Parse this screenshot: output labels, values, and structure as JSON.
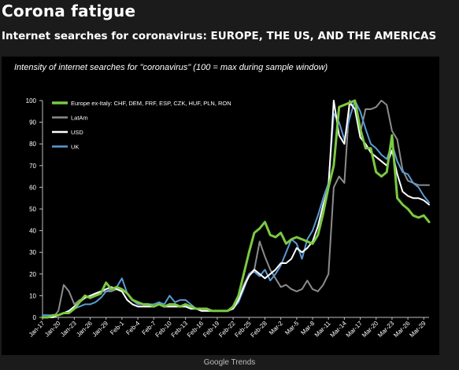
{
  "header": {
    "title": "Corona fatigue",
    "subtitle": "Internet searches for coronavirus: EUROPE, THE US, AND THE AMERICAS"
  },
  "source": "Google Trends",
  "chart_data": {
    "type": "line",
    "title": "Intensity of internet searches for \"coronavirus\" (100 = max during sample window)",
    "xlabel": "",
    "ylabel": "",
    "ylim": [
      0,
      100
    ],
    "yticks": [
      0,
      10,
      20,
      30,
      40,
      50,
      60,
      70,
      80,
      90,
      100
    ],
    "grid": false,
    "legend_position": "top-left",
    "x_tick_labels": [
      "Jan-17",
      "Jan-20",
      "Jan-23",
      "Jan-26",
      "Jan-29",
      "Feb-1",
      "Feb-4",
      "Feb-7",
      "Feb-10",
      "Feb-13",
      "Feb-16",
      "Feb-19",
      "Feb-22",
      "Feb-25",
      "Feb-28",
      "Mar-2",
      "Mar-5",
      "Mar-8",
      "Mar-11",
      "Mar-14",
      "Mar-17",
      "Mar-20",
      "Mar-23",
      "Mar-26",
      "Mar-29"
    ],
    "x_start_label": "Jan-17",
    "x_day_count": 73,
    "series": [
      {
        "name": "Europe ex-Italy: CHF, DEM, FRF, ESP, CZK, HUF, PLN, RON",
        "color": "#7ac943",
        "width": 3,
        "values": [
          0,
          0,
          1,
          1,
          2,
          2,
          4,
          7,
          10,
          9,
          10,
          11,
          16,
          13,
          14,
          13,
          11,
          8,
          7,
          6,
          6,
          5,
          6,
          5,
          6,
          6,
          5,
          6,
          5,
          4,
          4,
          4,
          3,
          3,
          3,
          3,
          5,
          10,
          20,
          30,
          39,
          41,
          44,
          38,
          37,
          39,
          34,
          36,
          37,
          36,
          35,
          34,
          38,
          48,
          60,
          70,
          97,
          98,
          99,
          100,
          87,
          78,
          78,
          67,
          65,
          67,
          84,
          55,
          52,
          50,
          47,
          46,
          47,
          44
        ]
      },
      {
        "name": "LatAm",
        "color": "#8c8c8c",
        "width": 2,
        "values": [
          0,
          0,
          0,
          3,
          15,
          12,
          6,
          8,
          9,
          10,
          11,
          12,
          12,
          12,
          13,
          12,
          8,
          6,
          5,
          5,
          5,
          5,
          6,
          5,
          5,
          5,
          5,
          5,
          4,
          4,
          3,
          3,
          3,
          3,
          3,
          3,
          4,
          8,
          15,
          20,
          22,
          35,
          28,
          22,
          18,
          14,
          15,
          13,
          12,
          13,
          17,
          13,
          12,
          15,
          20,
          60,
          65,
          62,
          100,
          96,
          85,
          96,
          96,
          97,
          100,
          98,
          86,
          82,
          68,
          63,
          62,
          61,
          61,
          61
        ]
      },
      {
        "name": "USD",
        "color": "#ffffff",
        "width": 2,
        "values": [
          0,
          0,
          0,
          1,
          2,
          3,
          5,
          7,
          9,
          10,
          11,
          12,
          13,
          14,
          13,
          12,
          8,
          6,
          5,
          5,
          5,
          5,
          6,
          5,
          5,
          5,
          5,
          5,
          4,
          4,
          3,
          3,
          3,
          3,
          3,
          3,
          4,
          8,
          14,
          19,
          22,
          20,
          18,
          20,
          22,
          25,
          25,
          27,
          32,
          30,
          32,
          35,
          42,
          52,
          60,
          100,
          84,
          80,
          99,
          96,
          83,
          80,
          76,
          74,
          72,
          70,
          77,
          66,
          58,
          56,
          55,
          55,
          54,
          52
        ]
      },
      {
        "name": "UK",
        "color": "#5b9bd5",
        "width": 2,
        "values": [
          1,
          1,
          1,
          1,
          2,
          3,
          4,
          5,
          6,
          6,
          7,
          9,
          12,
          13,
          14,
          18,
          11,
          8,
          6,
          6,
          6,
          6,
          7,
          6,
          10,
          7,
          8,
          8,
          6,
          4,
          4,
          4,
          3,
          3,
          3,
          3,
          4,
          7,
          13,
          20,
          21,
          19,
          22,
          17,
          20,
          24,
          30,
          36,
          34,
          27,
          36,
          40,
          47,
          55,
          62,
          94,
          90,
          82,
          92,
          100,
          95,
          87,
          80,
          78,
          75,
          73,
          80,
          72,
          67,
          66,
          62,
          60,
          56,
          53
        ]
      }
    ]
  }
}
